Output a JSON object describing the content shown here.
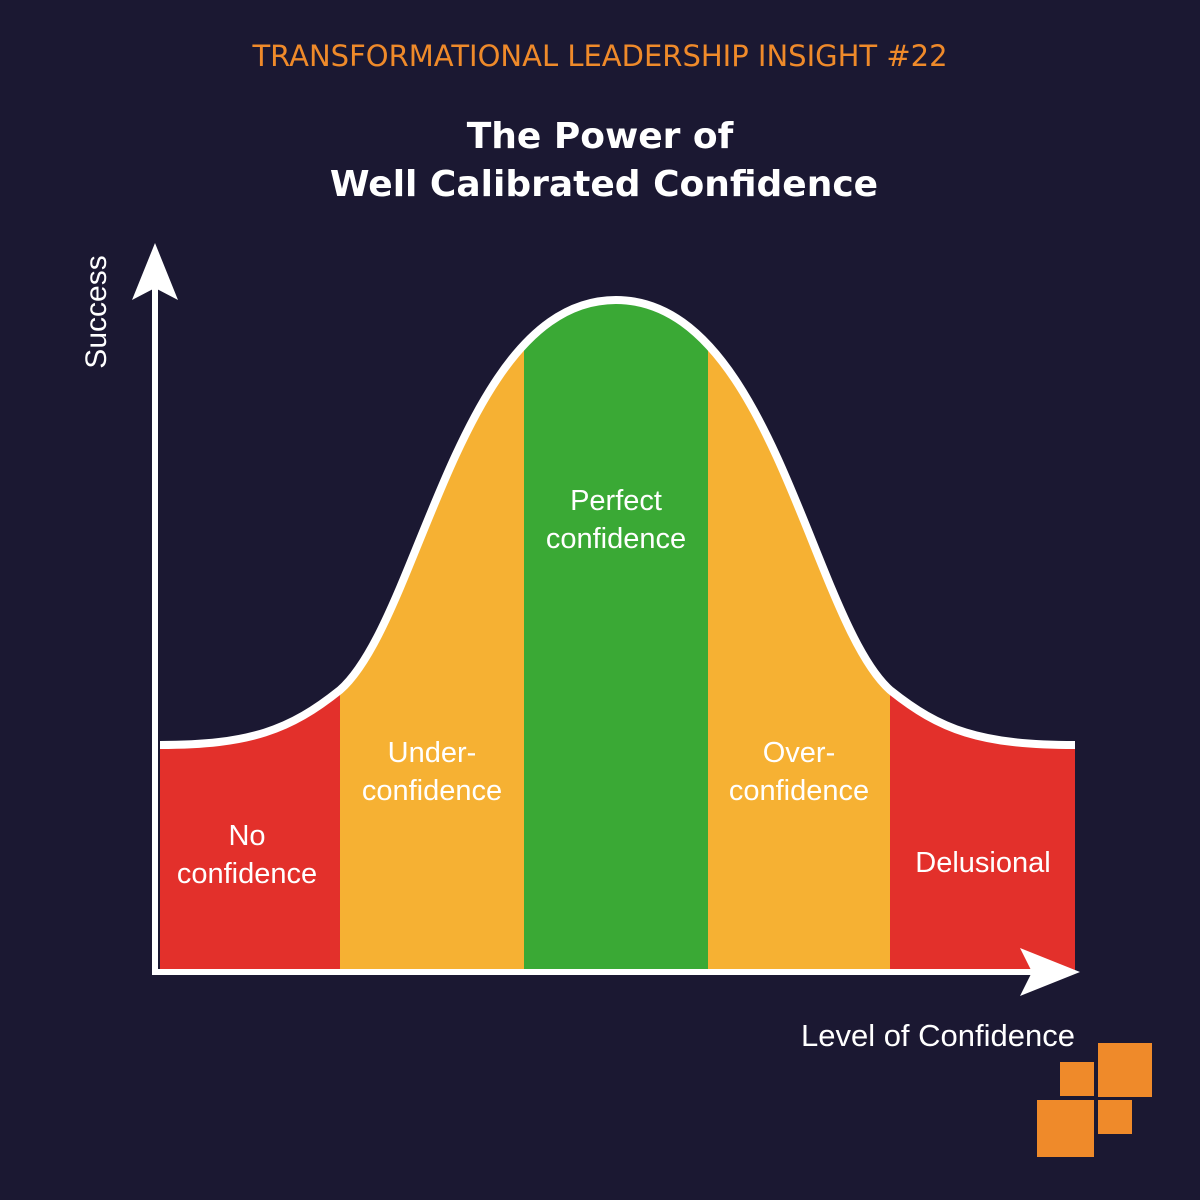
{
  "header": {
    "subtitle": "TRANSFORMATIONAL LEADERSHIP INSIGHT #22",
    "title": [
      "The Power of",
      "Well Calibrated Confidence"
    ]
  },
  "axes": {
    "y": "Success",
    "x": "Level of Confidence"
  },
  "zones": [
    {
      "label": [
        "No",
        "confidence"
      ],
      "color": "#e3302b"
    },
    {
      "label": [
        "Under-",
        "confidence"
      ],
      "color": "#f6b133"
    },
    {
      "label": [
        "Perfect",
        "confidence"
      ],
      "color": "#3aa935"
    },
    {
      "label": [
        "Over-",
        "confidence"
      ],
      "color": "#f6b133"
    },
    {
      "label": [
        "Delusional"
      ],
      "color": "#e3302b"
    }
  ]
}
